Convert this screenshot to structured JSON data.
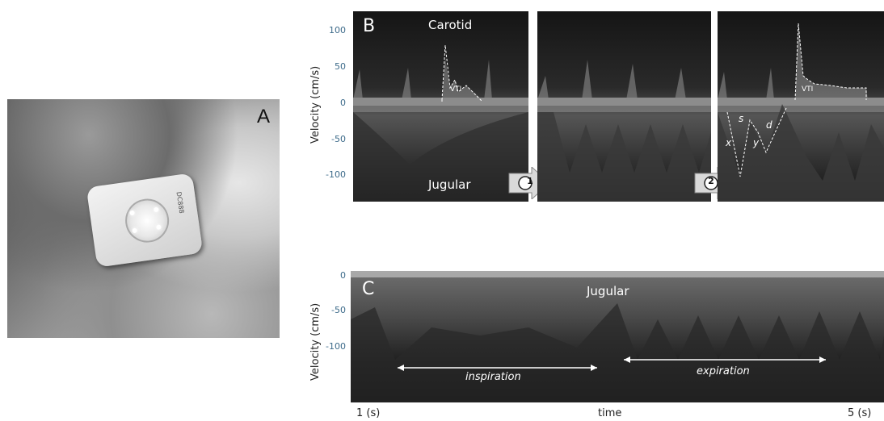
{
  "panel_a": {
    "letter": "A",
    "device_text": "DC888"
  },
  "panel_b": {
    "letter": "B",
    "top_label": "Carotid",
    "bottom_label": "Jugular",
    "y_axis_title": "Velocity (cm/s)",
    "y_ticks": [
      "100",
      "50",
      "0",
      "-50",
      "-100"
    ],
    "vti_label": "VTI",
    "wave_labels": {
      "x": "x",
      "s": "s",
      "y": "y",
      "d": "d"
    },
    "arrows": [
      "1",
      "2"
    ]
  },
  "panel_c": {
    "letter": "C",
    "label": "Jugular",
    "y_axis_title": "Velocity (cm/s)",
    "y_ticks": [
      "0",
      "-50",
      "-100"
    ],
    "inspiration": "inspiration",
    "expiration": "expiration",
    "x_left": "1 (s)",
    "x_mid": "time",
    "x_right": "5 (s)"
  },
  "colors": {
    "tick_blue": "#3d6b8a",
    "background": "#0b0b0b",
    "trace": "#ffffff"
  }
}
